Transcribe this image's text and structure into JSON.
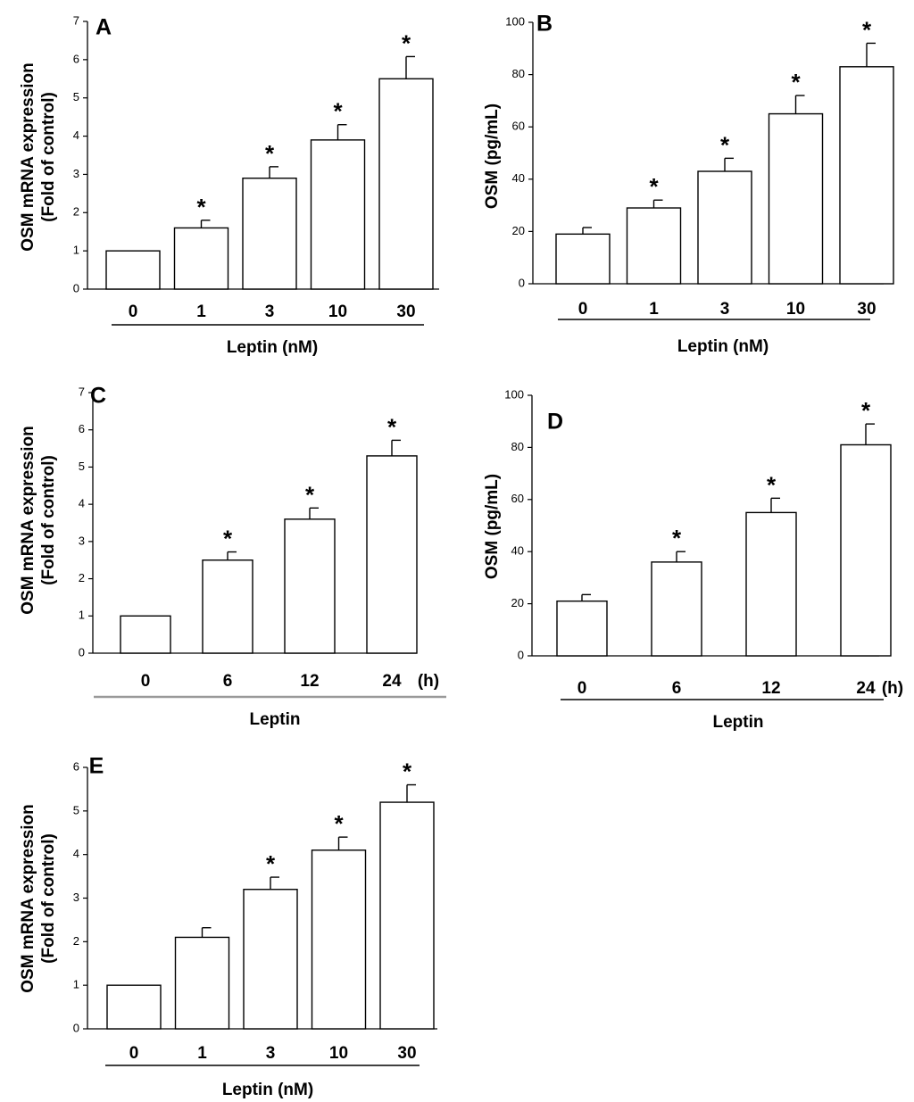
{
  "chart_data": [
    {
      "panel": "A",
      "type": "bar",
      "ylabel": [
        "OSM mRNA expression",
        "(Fold of control)"
      ],
      "categories": [
        "0",
        "1",
        "3",
        "10",
        "30"
      ],
      "values": [
        1.0,
        1.6,
        2.9,
        3.9,
        5.5
      ],
      "errors": [
        0,
        0.2,
        0.3,
        0.4,
        0.58
      ],
      "significant": [
        false,
        true,
        true,
        true,
        true
      ],
      "ylim": [
        0,
        7
      ],
      "yticks": [
        0,
        1,
        2,
        3,
        4,
        5,
        6,
        7
      ],
      "group_label": "Leptin (nM)",
      "unit_label": ""
    },
    {
      "panel": "B",
      "type": "bar",
      "ylabel": [
        "OSM (pg/mL)"
      ],
      "categories": [
        "0",
        "1",
        "3",
        "10",
        "30"
      ],
      "values": [
        19,
        29,
        43,
        65,
        83
      ],
      "errors": [
        2.5,
        3,
        5,
        7,
        9
      ],
      "significant": [
        false,
        true,
        true,
        true,
        true
      ],
      "ylim": [
        0,
        100
      ],
      "yticks": [
        0,
        20,
        40,
        60,
        80,
        100
      ],
      "group_label": "Leptin (nM)",
      "unit_label": ""
    },
    {
      "panel": "C",
      "type": "bar",
      "ylabel": [
        "OSM mRNA expression",
        "(Fold of control)"
      ],
      "categories": [
        "0",
        "6",
        "12",
        "24"
      ],
      "values": [
        1.0,
        2.5,
        3.6,
        5.3
      ],
      "errors": [
        0,
        0.22,
        0.3,
        0.42
      ],
      "significant": [
        false,
        true,
        true,
        true
      ],
      "ylim": [
        0,
        7
      ],
      "yticks": [
        0,
        1,
        2,
        3,
        4,
        5,
        6,
        7
      ],
      "group_label": "Leptin",
      "unit_label": "(h)"
    },
    {
      "panel": "D",
      "type": "bar",
      "ylabel": [
        "OSM (pg/mL)"
      ],
      "categories": [
        "0",
        "6",
        "12",
        "24"
      ],
      "values": [
        21,
        36,
        55,
        81
      ],
      "errors": [
        2.5,
        4,
        5.5,
        8
      ],
      "significant": [
        false,
        true,
        true,
        true
      ],
      "ylim": [
        0,
        100
      ],
      "yticks": [
        0,
        20,
        40,
        60,
        80,
        100
      ],
      "group_label": "Leptin",
      "unit_label": "(h)"
    },
    {
      "panel": "E",
      "type": "bar",
      "ylabel": [
        "OSM mRNA expression",
        "(Fold of control)"
      ],
      "categories": [
        "0",
        "1",
        "3",
        "10",
        "30"
      ],
      "values": [
        1.0,
        2.1,
        3.2,
        4.1,
        5.2
      ],
      "errors": [
        0,
        0.22,
        0.28,
        0.3,
        0.4
      ],
      "significant": [
        false,
        false,
        true,
        true,
        true
      ],
      "ylim": [
        0,
        6
      ],
      "yticks": [
        0,
        1,
        2,
        3,
        4,
        5,
        6
      ],
      "group_label": "Leptin (nM)",
      "unit_label": ""
    }
  ],
  "significance_marker": "*"
}
